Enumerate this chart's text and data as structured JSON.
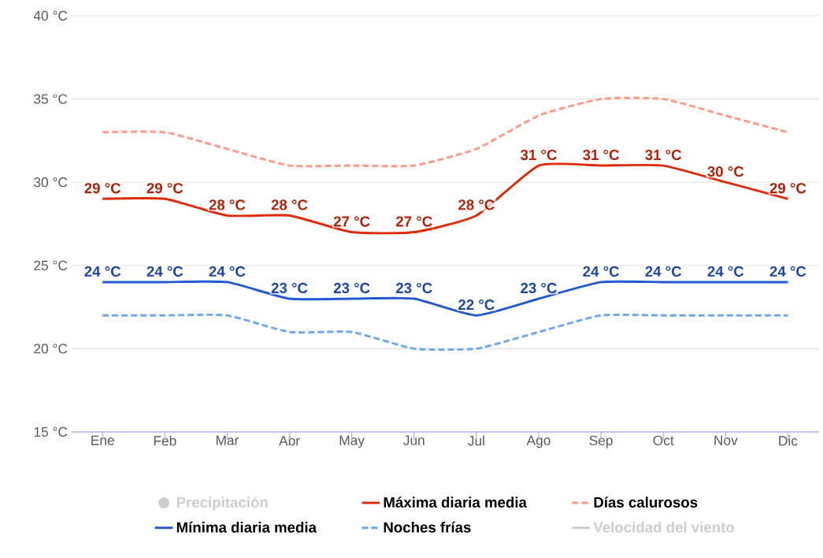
{
  "chart_data": {
    "type": "line",
    "categories": [
      "Ene",
      "Feb",
      "Mar",
      "Abr",
      "May",
      "Jun",
      "Jul",
      "Ago",
      "Sep",
      "Oct",
      "Nov",
      "Dic"
    ],
    "series": [
      {
        "name": "Precipitación",
        "type": "scatter",
        "color": "#cccccc",
        "values": [
          null,
          null,
          null,
          null,
          null,
          null,
          null,
          null,
          null,
          null,
          null,
          null
        ]
      },
      {
        "name": "Máxima diaria media",
        "color": "#dd2c0c",
        "line_style": "solid",
        "values": [
          29,
          29,
          28,
          28,
          27,
          27,
          28,
          31,
          31,
          31,
          30,
          29
        ],
        "value_labels": [
          "29 °C",
          "29 °C",
          "28 °C",
          "28 °C",
          "27 °C",
          "27 °C",
          "28 °C",
          "31 °C",
          "31 °C",
          "31 °C",
          "30 °C",
          "29 °C"
        ]
      },
      {
        "name": "Días calurosos",
        "color": "#ff9a8a",
        "line_style": "dashed",
        "values": [
          33,
          33,
          32,
          31,
          31,
          31,
          32,
          34,
          35,
          35,
          34,
          33
        ]
      },
      {
        "name": "Mínima diaria media",
        "color": "#2458d0",
        "line_style": "solid",
        "values": [
          24,
          24,
          24,
          23,
          23,
          23,
          22,
          23,
          24,
          24,
          24,
          24
        ],
        "value_labels": [
          "24 °C",
          "24 °C",
          "24 °C",
          "23 °C",
          "23 °C",
          "23 °C",
          "22 °C",
          "23 °C",
          "24 °C",
          "24 °C",
          "24 °C",
          "24 °C"
        ]
      },
      {
        "name": "Noches frías",
        "color": "#6fa8e8",
        "line_style": "dashed",
        "values": [
          22,
          22,
          22,
          21,
          21,
          20,
          20,
          21,
          22,
          22,
          22,
          22
        ]
      },
      {
        "name": "Velocidad del viento",
        "type": "line",
        "color": "#cccccc",
        "values": [
          null,
          null,
          null,
          null,
          null,
          null,
          null,
          null,
          null,
          null,
          null,
          null
        ]
      }
    ],
    "ylim": [
      15,
      40
    ],
    "yticks": [
      {
        "value": 15,
        "label": "15 °C"
      },
      {
        "value": 20,
        "label": "20 °C"
      },
      {
        "value": 25,
        "label": "25 °C"
      },
      {
        "value": 30,
        "label": "30 °C"
      },
      {
        "value": 35,
        "label": "35 °C"
      },
      {
        "value": 40,
        "label": "40 °C"
      }
    ],
    "grid": "y",
    "legend": "bottom"
  }
}
